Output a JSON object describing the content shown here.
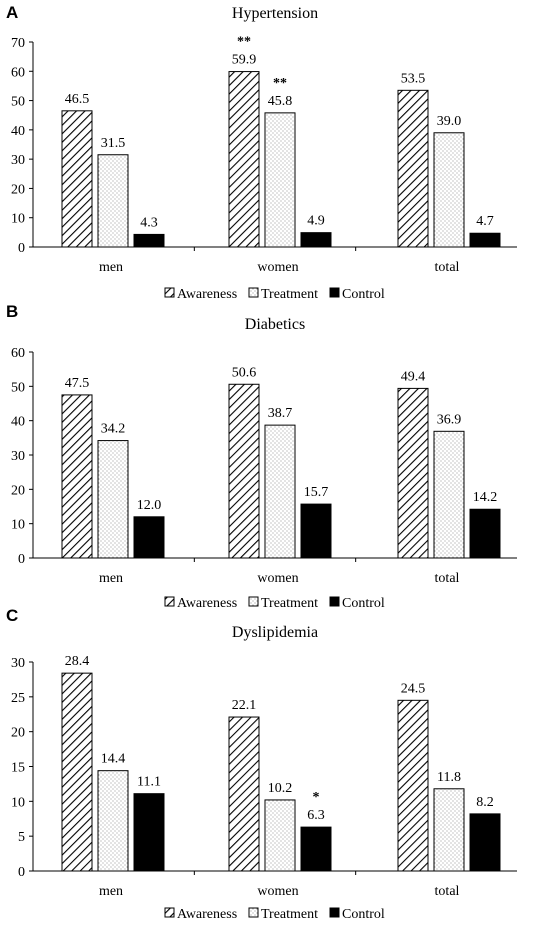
{
  "chart_data": [
    {
      "type": "bar",
      "panel": "A",
      "title": "Hypertension",
      "categories": [
        "men",
        "women",
        "total"
      ],
      "series": [
        {
          "name": "Awareness",
          "values": [
            46.5,
            59.9,
            53.5
          ],
          "labels": [
            "46.5",
            "59.9",
            "53.5"
          ],
          "significance": [
            "",
            "**",
            ""
          ]
        },
        {
          "name": "Treatment",
          "values": [
            31.5,
            45.8,
            39.0
          ],
          "labels": [
            "31.5",
            "45.8",
            "39.0"
          ],
          "significance": [
            "",
            "**",
            ""
          ]
        },
        {
          "name": "Control",
          "values": [
            4.3,
            4.9,
            4.7
          ],
          "labels": [
            "4.3",
            "4.9",
            "4.7"
          ],
          "significance": [
            "",
            "",
            ""
          ]
        }
      ],
      "ylim": [
        0,
        70
      ],
      "yticks": [
        0,
        10,
        20,
        30,
        40,
        50,
        60,
        70
      ],
      "xlabel": "",
      "ylabel": "",
      "grid": false,
      "legend": "bottom"
    },
    {
      "type": "bar",
      "panel": "B",
      "title": "Diabetics",
      "categories": [
        "men",
        "women",
        "total"
      ],
      "series": [
        {
          "name": "Awareness",
          "values": [
            47.5,
            50.6,
            49.4
          ],
          "labels": [
            "47.5",
            "50.6",
            "49.4"
          ],
          "significance": [
            "",
            "",
            ""
          ]
        },
        {
          "name": "Treatment",
          "values": [
            34.2,
            38.7,
            36.9
          ],
          "labels": [
            "34.2",
            "38.7",
            "36.9"
          ],
          "significance": [
            "",
            "",
            ""
          ]
        },
        {
          "name": "Control",
          "values": [
            12.0,
            15.7,
            14.2
          ],
          "labels": [
            "12.0",
            "15.7",
            "14.2"
          ],
          "significance": [
            "",
            "",
            ""
          ]
        }
      ],
      "ylim": [
        0,
        60
      ],
      "yticks": [
        0,
        10,
        20,
        30,
        40,
        50,
        60
      ],
      "xlabel": "",
      "ylabel": "",
      "grid": false,
      "legend": "bottom"
    },
    {
      "type": "bar",
      "panel": "C",
      "title": "Dyslipidemia",
      "categories": [
        "men",
        "women",
        "total"
      ],
      "series": [
        {
          "name": "Awareness",
          "values": [
            28.4,
            22.1,
            24.5
          ],
          "labels": [
            "28.4",
            "22.1",
            "24.5"
          ],
          "significance": [
            "",
            "",
            ""
          ]
        },
        {
          "name": "Treatment",
          "values": [
            14.4,
            10.2,
            11.8
          ],
          "labels": [
            "14.4",
            "10.2",
            "11.8"
          ],
          "significance": [
            "",
            "",
            ""
          ]
        },
        {
          "name": "Control",
          "values": [
            11.1,
            6.3,
            8.2
          ],
          "labels": [
            "11.1",
            "6.3",
            "8.2"
          ],
          "significance": [
            "",
            "*",
            ""
          ]
        }
      ],
      "ylim": [
        0,
        30
      ],
      "yticks": [
        0,
        5,
        10,
        15,
        20,
        25,
        30
      ],
      "xlabel": "",
      "ylabel": "",
      "grid": false,
      "legend": "bottom"
    }
  ],
  "colors": {
    "bar_outline": "#000000",
    "awareness_pattern": "diagonal-hatch",
    "treatment_pattern": "dotted",
    "control_fill": "#000000"
  }
}
